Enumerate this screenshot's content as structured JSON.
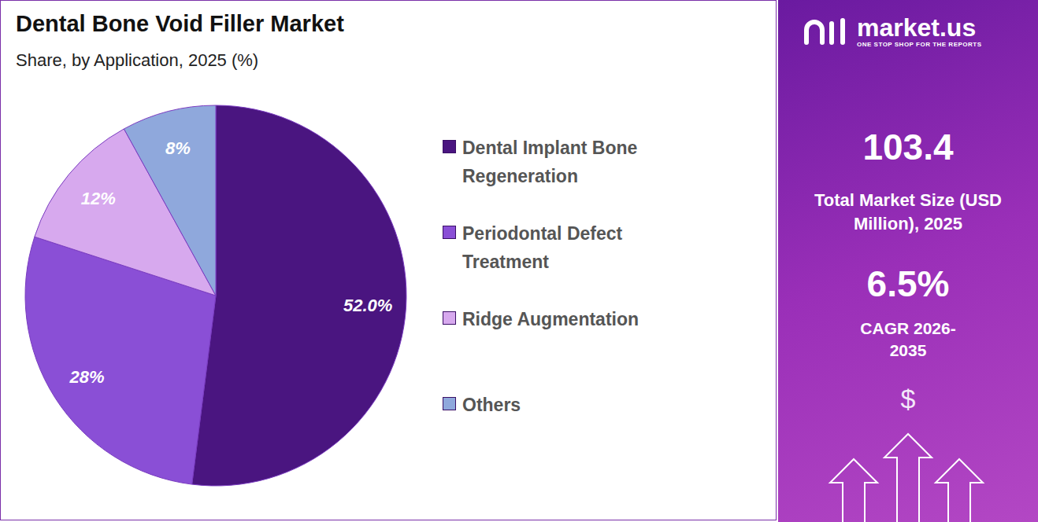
{
  "chart_data": {
    "type": "pie",
    "title": "Dental Bone Void Filler Market",
    "subtitle": "Share, by Application, 2025 (%)",
    "categories": [
      "Dental Implant Bone Regeneration",
      "Periodontal Defect Treatment",
      "Ridge Augmentation",
      "Others"
    ],
    "values": [
      52.0,
      28,
      12,
      8
    ],
    "value_labels": [
      "52.0%",
      "28%",
      "12%",
      "8%"
    ],
    "colors": [
      "#4a1580",
      "#8a4fd6",
      "#d7a9ee",
      "#8fa8dc"
    ],
    "data_labels": true,
    "legend": "right"
  },
  "side_panel": {
    "brand": "market.us",
    "tagline": "ONE STOP SHOP FOR THE REPORTS",
    "market_size": 103.4,
    "market_size_label": "Total Market Size (USD Million), 2025",
    "cagr": {
      "value": 6.5,
      "label": "6.5%"
    },
    "cagr_label": "CAGR 2026-2035",
    "icon_text": "$"
  }
}
